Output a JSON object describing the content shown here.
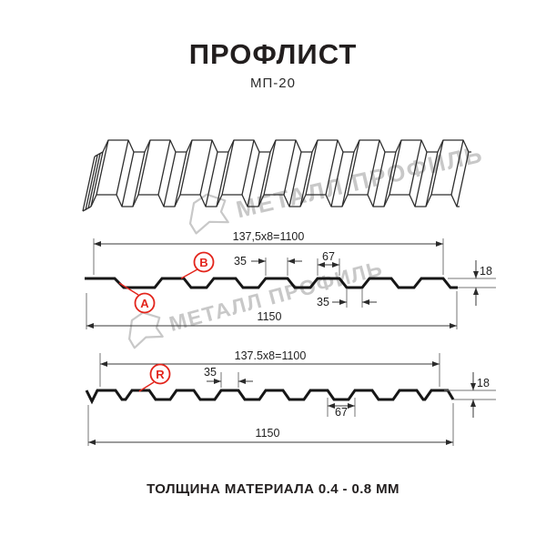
{
  "header": {
    "title": "ПРОФЛИСТ",
    "subtitle": "МП-20"
  },
  "watermark": {
    "text": "МЕТАЛЛ ПРОФИЛЬ"
  },
  "profile_a": {
    "formula": "137,5x8=1100",
    "overall": "1150",
    "rib_width": "35",
    "rib_pitch": "67",
    "valley_width": "35",
    "height": "18",
    "marker_a": "A",
    "marker_b": "B"
  },
  "profile_r": {
    "formula": "137.5x8=1100",
    "overall": "1150",
    "rib_width": "35",
    "rib_pitch": "67",
    "height": "18",
    "marker_r": "R"
  },
  "footer": {
    "note": "ТОЛЩИНА МАТЕРИАЛА 0.4 - 0.8 ММ"
  },
  "colors": {
    "accent_red": "#e3251c",
    "line_black": "#161616",
    "watermark_gray": "#c8c8c8"
  }
}
